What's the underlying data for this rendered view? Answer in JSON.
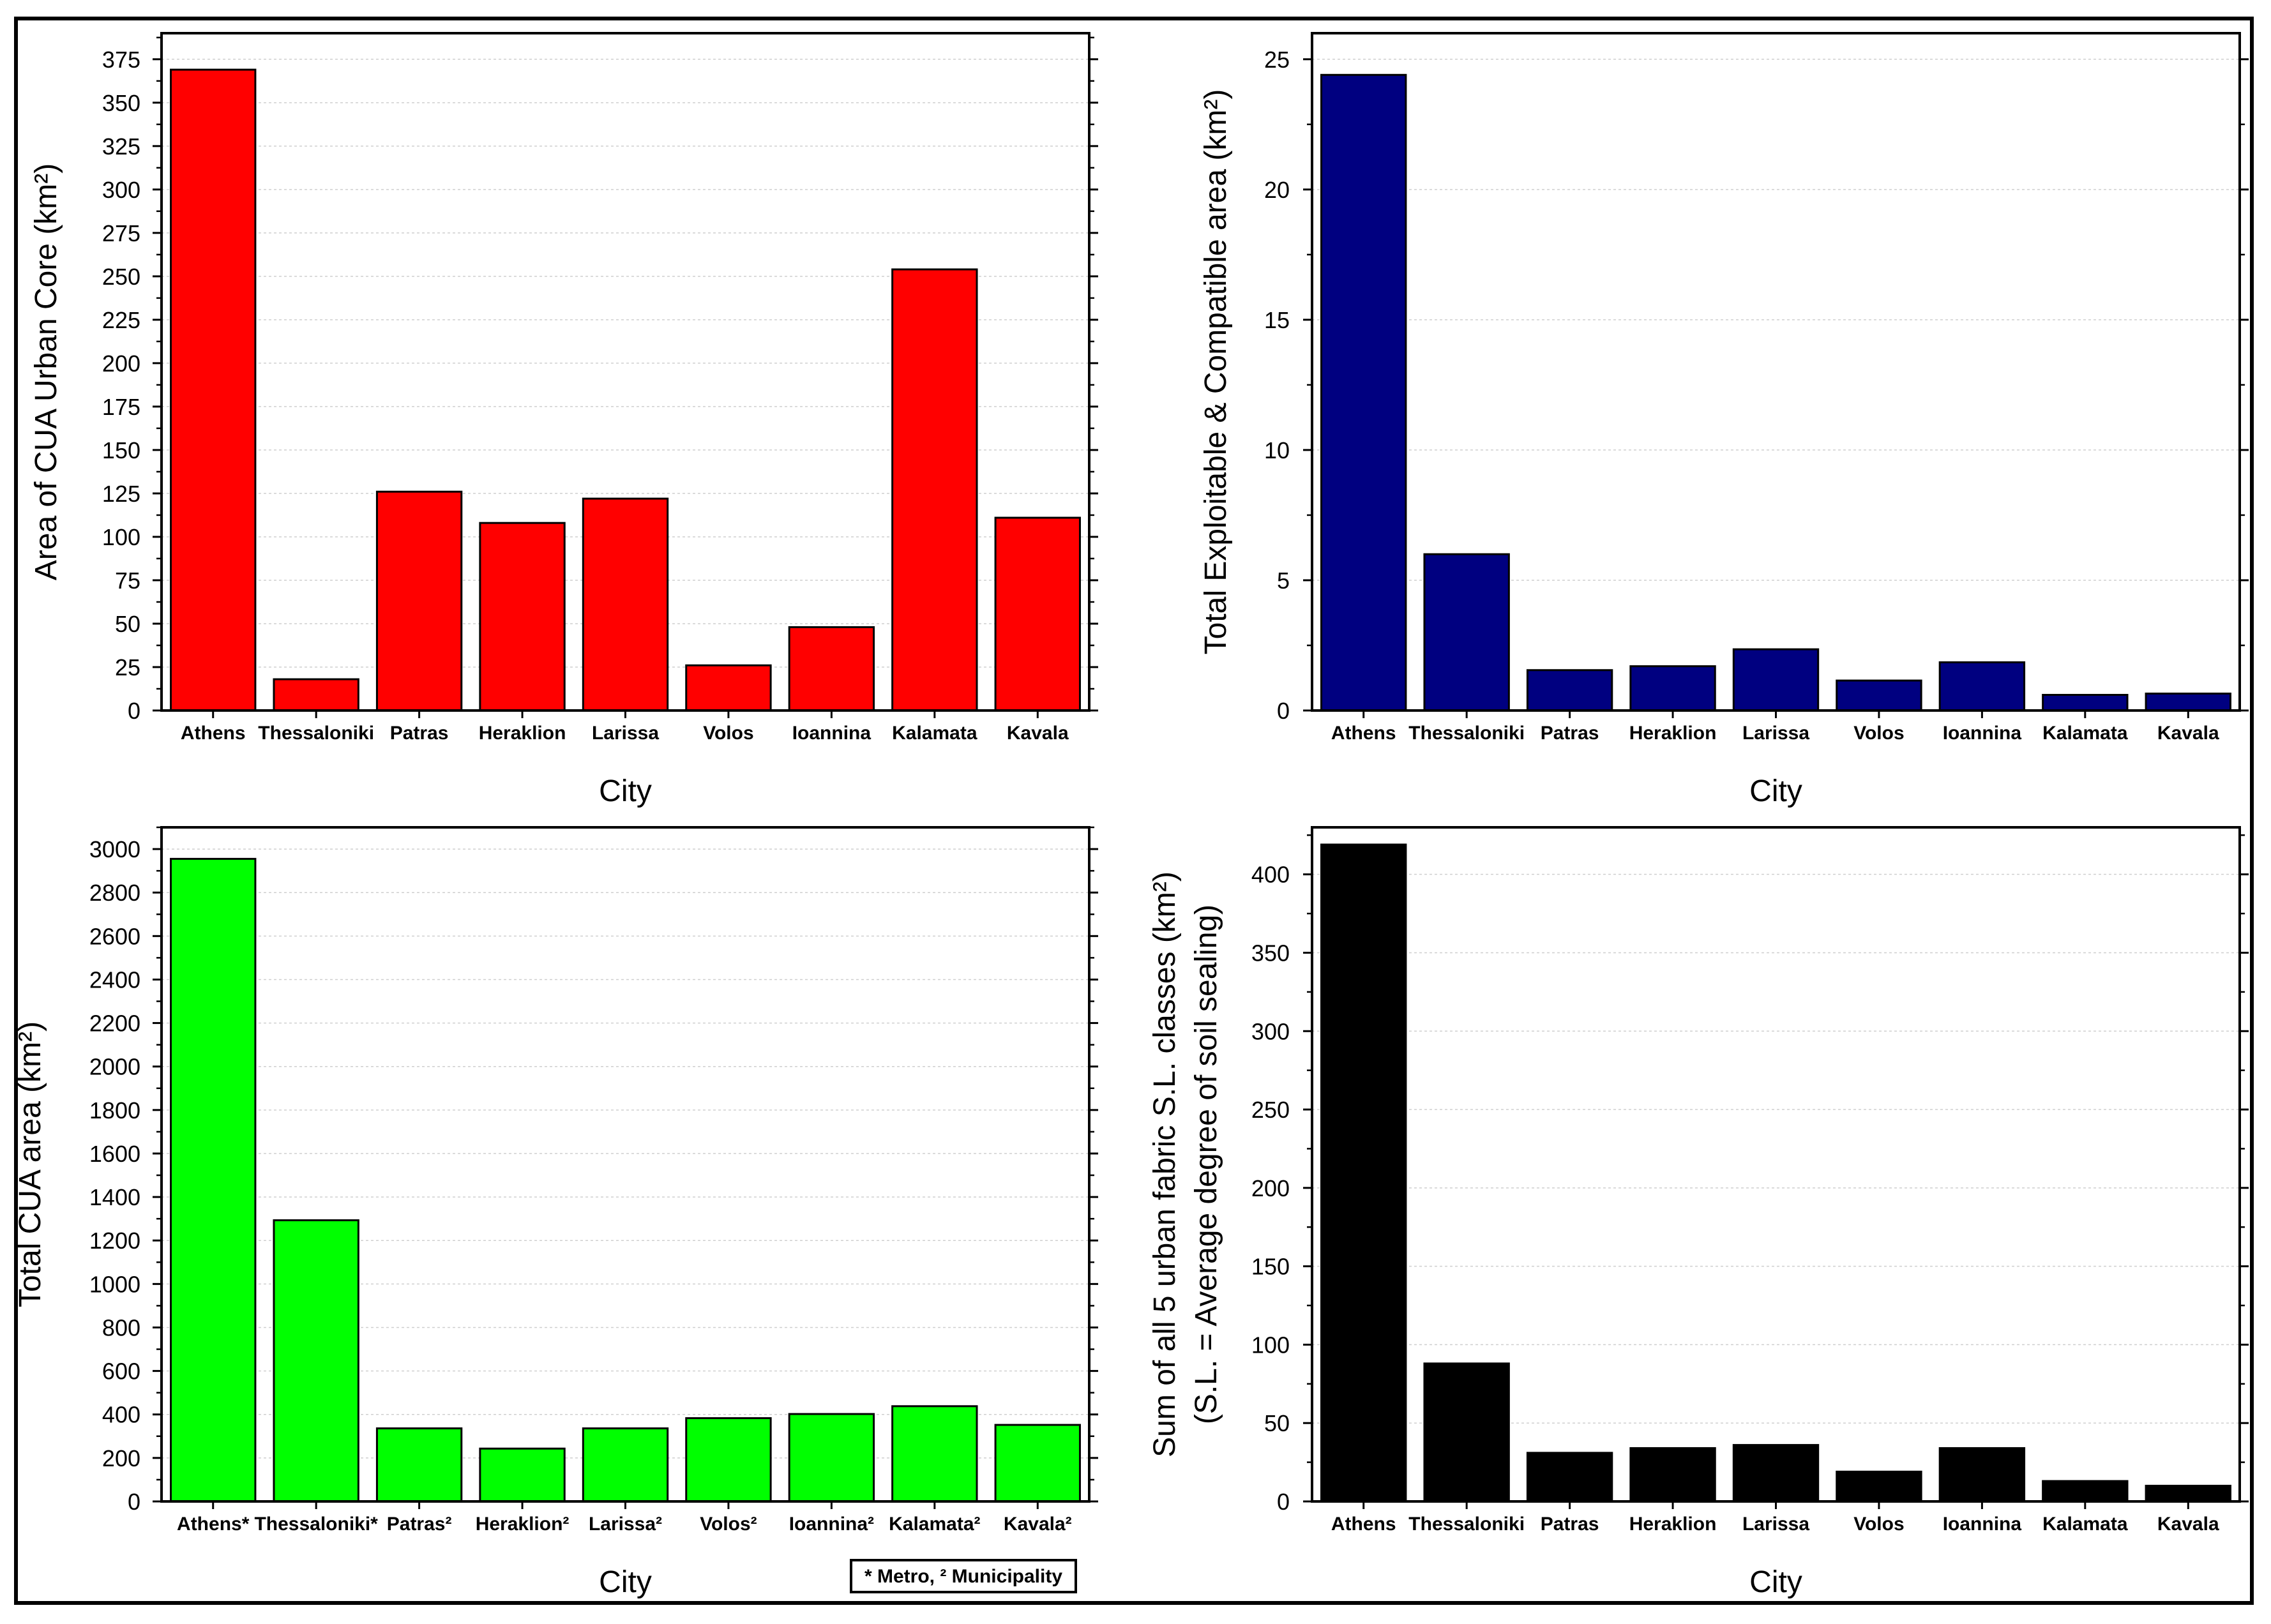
{
  "chart_data": [
    {
      "type": "bar",
      "title": "",
      "xlabel": "City",
      "ylabel": "Area of CUA Urban Core (km²)",
      "categories": [
        "Athens",
        "Thessaloniki",
        "Patras",
        "Heraklion",
        "Larissa",
        "Volos",
        "Ioannina",
        "Kalamata",
        "Kavala"
      ],
      "values": [
        369,
        18,
        126,
        108,
        122,
        26,
        48,
        254,
        111
      ],
      "ylim": [
        0,
        390
      ],
      "yticks": [
        0,
        25,
        50,
        75,
        100,
        125,
        150,
        175,
        200,
        225,
        250,
        275,
        300,
        325,
        350,
        375
      ],
      "color": "#ff0000",
      "grid": true,
      "note": ""
    },
    {
      "type": "bar",
      "title": "",
      "xlabel": "City",
      "ylabel": "Total Exploitable & Compatible area (km²)",
      "categories": [
        "Athens",
        "Thessaloniki",
        "Patras",
        "Heraklion",
        "Larissa",
        "Volos",
        "Ioannina",
        "Kalamata",
        "Kavala"
      ],
      "values": [
        24.4,
        6.0,
        1.55,
        1.7,
        2.35,
        1.15,
        1.85,
        0.6,
        0.65
      ],
      "ylim": [
        0,
        26
      ],
      "yticks": [
        0,
        5,
        10,
        15,
        20,
        25
      ],
      "color": "#000080",
      "grid": true,
      "note": ""
    },
    {
      "type": "bar",
      "title": "",
      "xlabel": "City",
      "ylabel": "Total CUA area (km²)",
      "categories": [
        "Athens*",
        "Thessaloniki*",
        "Patras²",
        "Heraklion²",
        "Larissa²",
        "Volos²",
        "Ioannina²",
        "Kalamata²",
        "Kavala²"
      ],
      "values": [
        2955,
        1293,
        336,
        243,
        336,
        383,
        402,
        438,
        352
      ],
      "ylim": [
        0,
        3100
      ],
      "yticks": [
        0,
        200,
        400,
        600,
        800,
        1000,
        1200,
        1400,
        1600,
        1800,
        2000,
        2200,
        2400,
        2600,
        2800,
        3000
      ],
      "color": "#00ff00",
      "grid": true,
      "note": "* Metro, ² Municipality"
    },
    {
      "type": "bar",
      "title": "",
      "xlabel": "City",
      "ylabel": "Sum of all 5 urban fabric S.L. classes (km²)",
      "ylabel2": "(S.L. = Average degree of soil sealing)",
      "categories": [
        "Athens",
        "Thessaloniki",
        "Patras",
        "Heraklion",
        "Larissa",
        "Volos",
        "Ioannina",
        "Kalamata",
        "Kavala"
      ],
      "values": [
        419,
        88,
        31,
        34,
        36,
        19,
        34,
        13,
        10
      ],
      "ylim": [
        0,
        430
      ],
      "yticks": [
        0,
        50,
        100,
        150,
        200,
        250,
        300,
        350,
        400
      ],
      "color": "#000000",
      "grid": true,
      "note": ""
    }
  ]
}
